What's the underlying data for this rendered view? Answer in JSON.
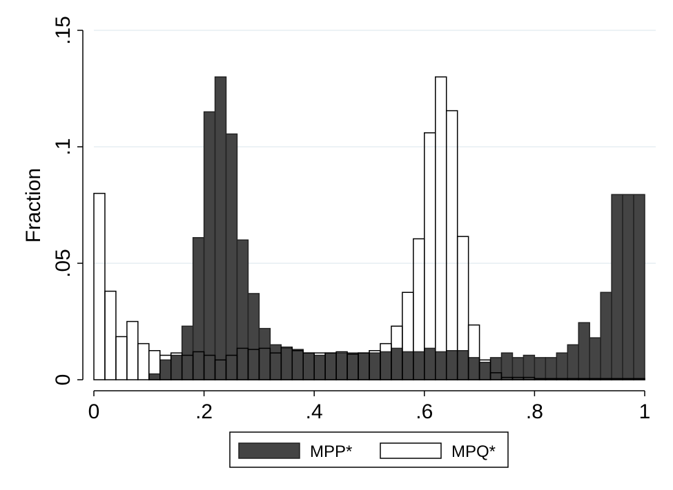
{
  "chart_data": {
    "type": "bar",
    "title": "",
    "xlabel": "",
    "ylabel": "Fraction",
    "xlim": [
      0,
      1
    ],
    "ylim": [
      0,
      0.15
    ],
    "bin_width": 0.02,
    "x_ticks": [
      {
        "value": 0,
        "label": "0"
      },
      {
        "value": 0.2,
        "label": ".2"
      },
      {
        "value": 0.4,
        "label": ".4"
      },
      {
        "value": 0.6,
        "label": ".6"
      },
      {
        "value": 0.8,
        "label": ".8"
      },
      {
        "value": 1,
        "label": "1"
      }
    ],
    "y_ticks": [
      {
        "value": 0,
        "label": "0"
      },
      {
        "value": 0.05,
        "label": ".05"
      },
      {
        "value": 0.1,
        "label": ".1"
      },
      {
        "value": 0.15,
        "label": ".15"
      }
    ],
    "grid": true,
    "legend_position": "bottom",
    "bin_starts": [
      0,
      0.02,
      0.04,
      0.06,
      0.08,
      0.1,
      0.12,
      0.14,
      0.16,
      0.18,
      0.2,
      0.22,
      0.24,
      0.26,
      0.28,
      0.3,
      0.32,
      0.34,
      0.36,
      0.38,
      0.4,
      0.42,
      0.44,
      0.46,
      0.48,
      0.5,
      0.52,
      0.54,
      0.56,
      0.58,
      0.6,
      0.62,
      0.64,
      0.66,
      0.68,
      0.7,
      0.72,
      0.74,
      0.76,
      0.78,
      0.8,
      0.82,
      0.84,
      0.86,
      0.88,
      0.9,
      0.92,
      0.94,
      0.96,
      0.98
    ],
    "series": [
      {
        "name": "MPP*",
        "fill": "#444444",
        "stroke": "#222222",
        "values": [
          0,
          0,
          0,
          0,
          0,
          0.0025,
          0.0085,
          0.0105,
          0.023,
          0.061,
          0.115,
          0.13,
          0.1055,
          0.06,
          0.037,
          0.022,
          0.015,
          0.0135,
          0.013,
          0.0115,
          0.0105,
          0.0115,
          0.0115,
          0.0115,
          0.0115,
          0.0115,
          0.012,
          0.0135,
          0.012,
          0.012,
          0.0135,
          0.012,
          0.0125,
          0.0125,
          0.0095,
          0.0075,
          0.0095,
          0.0115,
          0.0095,
          0.0105,
          0.0095,
          0.0095,
          0.0115,
          0.015,
          0.0245,
          0.018,
          0.0375,
          0.0795,
          0.0795,
          0.0795
        ]
      },
      {
        "name": "MPQ*",
        "fill": "#ffffff",
        "stroke": "#000000",
        "values": [
          0.08,
          0.038,
          0.0185,
          0.025,
          0.0155,
          0.0125,
          0.0105,
          0.0115,
          0.0105,
          0.012,
          0.0105,
          0.0085,
          0.0105,
          0.0135,
          0.013,
          0.0135,
          0.0115,
          0.014,
          0.0125,
          0.0115,
          0.0115,
          0.0115,
          0.012,
          0.011,
          0.0115,
          0.0125,
          0.0155,
          0.023,
          0.0375,
          0.0605,
          0.106,
          0.13,
          0.1155,
          0.0615,
          0.0235,
          0.0085,
          0.003,
          0.001,
          0.001,
          0.001,
          0.0005,
          0.0005,
          0.0005,
          0.0005,
          0.0005,
          0.0005,
          0.0005,
          0.0005,
          0.0005,
          0.0005
        ]
      }
    ]
  }
}
